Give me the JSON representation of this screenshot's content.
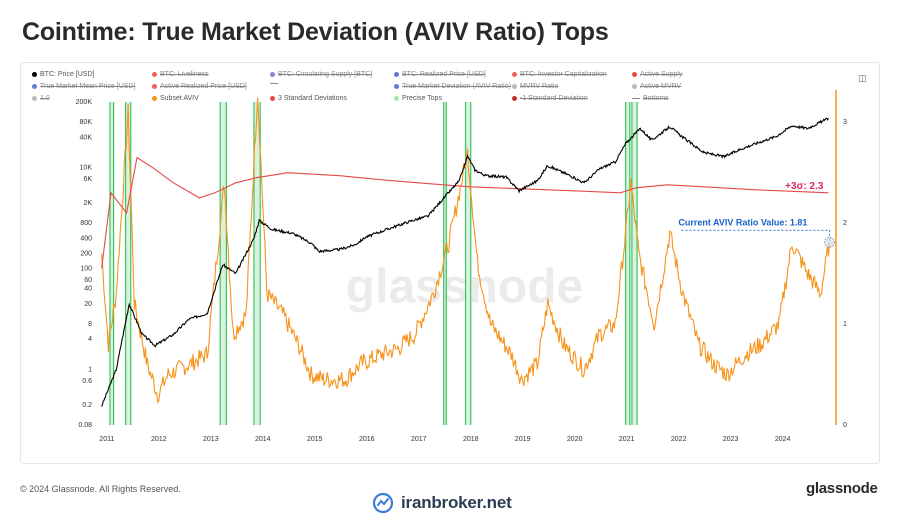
{
  "title": "Cointime: True Market Deviation (AVIV Ratio) Tops",
  "footer": {
    "copyright": "© 2024 Glassnode. All Rights Reserved.",
    "brand": "glassnode",
    "watermark": "iranbroker.net"
  },
  "legend": [
    {
      "label": "BTC: Price [USD]",
      "color": "#000000",
      "active": true,
      "shape": "dot"
    },
    {
      "label": "BTC: Liveliness",
      "color": "#f25c5c",
      "active": false,
      "shape": "dot"
    },
    {
      "label": "BTC: Circulating Supply [BTC]",
      "color": "#8a83d6",
      "active": false,
      "shape": "dot"
    },
    {
      "label": "BTC: Realized Price [USD]",
      "color": "#6b74d9",
      "active": false,
      "shape": "dot"
    },
    {
      "label": "BTC: Investor Capitalization",
      "color": "#f25c5c",
      "active": false,
      "shape": "dot"
    },
    {
      "label": "Active Supply",
      "color": "#e74848",
      "active": false,
      "shape": "dot"
    },
    {
      "label": "True Market Mean Price [USD]",
      "color": "#5d7fd6",
      "active": false,
      "shape": "dot"
    },
    {
      "label": "Active Realized Price [USD]",
      "color": "#f25c5c",
      "active": false,
      "shape": "dot"
    },
    {
      "label": "",
      "color": "#888888",
      "active": false,
      "shape": "dash"
    },
    {
      "label": "True Market Deviation (AVIV Ratio)",
      "color": "#6b74d9",
      "active": false,
      "shape": "dot"
    },
    {
      "label": "MVRV Ratio",
      "color": "#bbbbbb",
      "active": false,
      "shape": "dot"
    },
    {
      "label": "Active MVRV",
      "color": "#bbbbbb",
      "active": false,
      "shape": "dot"
    },
    {
      "label": "1.0",
      "color": "#bbbbbb",
      "active": false,
      "shape": "dot"
    },
    {
      "label": "Subset AVIV",
      "color": "#f7931a",
      "active": true,
      "shape": "dot"
    },
    {
      "label": "3 Standard Deviations",
      "color": "#e74848",
      "active": true,
      "shape": "dot"
    },
    {
      "label": "Precise Tops",
      "color": "#a8e6b0",
      "active": true,
      "shape": "dot"
    },
    {
      "label": "-1 Standard Deviation",
      "color": "#c92a2a",
      "active": false,
      "shape": "dot"
    },
    {
      "label": "Bottoms",
      "color": "#888888",
      "active": false,
      "shape": "dash"
    }
  ],
  "annotations": {
    "sigma_label": "+3σ: 2.3",
    "current_label": "Current AVIV Ratio Value: 1.81",
    "watermark_text": "glassnode"
  },
  "colors": {
    "price": "#000000",
    "aviv": "#f7931a",
    "sigma": "#e74848",
    "tops": "#3cc461",
    "annotation_blue": "#1a62c7",
    "annotation_pink": "#e0245e"
  },
  "chart_data": {
    "type": "line",
    "title": "Cointime: True Market Deviation (AVIV Ratio) Tops",
    "xlabel": "",
    "ylabel_left": "",
    "ylabel_right": "",
    "x_ticks": [
      "2011",
      "2012",
      "2013",
      "2014",
      "2015",
      "2016",
      "2017",
      "2018",
      "2019",
      "2020",
      "2021",
      "2022",
      "2023",
      "2024"
    ],
    "y_left_scale": "log",
    "y_left_ticks": [
      "0.08",
      "0.2",
      "0.6",
      "1",
      "4",
      "8",
      "20",
      "40",
      "60",
      "100",
      "200",
      "400",
      "800",
      "2K",
      "6K",
      "10K",
      "40K",
      "80K",
      "200K"
    ],
    "y_left_range": [
      0.08,
      200000
    ],
    "y_right_ticks": [
      "0",
      "1",
      "2",
      "3"
    ],
    "y_right_range": [
      0,
      3.2
    ],
    "series": [
      {
        "name": "BTC: Price [USD]",
        "axis": "left",
        "points": [
          [
            2010.92,
            0.19
          ],
          [
            2011.2,
            1
          ],
          [
            2011.45,
            20
          ],
          [
            2011.7,
            5
          ],
          [
            2011.95,
            3
          ],
          [
            2012.3,
            5
          ],
          [
            2012.6,
            10
          ],
          [
            2012.95,
            13
          ],
          [
            2013.25,
            120
          ],
          [
            2013.5,
            80
          ],
          [
            2013.85,
            400
          ],
          [
            2013.95,
            900
          ],
          [
            2014.2,
            600
          ],
          [
            2014.6,
            500
          ],
          [
            2014.95,
            320
          ],
          [
            2015.1,
            220
          ],
          [
            2015.5,
            240
          ],
          [
            2015.8,
            300
          ],
          [
            2016.0,
            420
          ],
          [
            2016.5,
            650
          ],
          [
            2016.9,
            900
          ],
          [
            2017.2,
            1100
          ],
          [
            2017.5,
            2500
          ],
          [
            2017.8,
            5500
          ],
          [
            2017.96,
            17000
          ],
          [
            2018.1,
            9000
          ],
          [
            2018.3,
            7000
          ],
          [
            2018.7,
            6500
          ],
          [
            2018.95,
            3500
          ],
          [
            2019.3,
            5500
          ],
          [
            2019.5,
            11000
          ],
          [
            2019.9,
            7200
          ],
          [
            2020.2,
            5000
          ],
          [
            2020.5,
            9500
          ],
          [
            2020.8,
            13000
          ],
          [
            2021.0,
            30000
          ],
          [
            2021.28,
            60000
          ],
          [
            2021.5,
            35000
          ],
          [
            2021.85,
            65000
          ],
          [
            2022.1,
            40000
          ],
          [
            2022.5,
            20000
          ],
          [
            2022.9,
            16500
          ],
          [
            2023.2,
            23000
          ],
          [
            2023.5,
            30000
          ],
          [
            2023.9,
            42000
          ],
          [
            2024.2,
            68000
          ],
          [
            2024.5,
            60000
          ],
          [
            2024.9,
            95000
          ]
        ]
      },
      {
        "name": "Subset AVIV",
        "axis": "right",
        "points": [
          [
            2010.92,
            1.7
          ],
          [
            2011.05,
            0.8
          ],
          [
            2011.2,
            1.3
          ],
          [
            2011.43,
            3.1
          ],
          [
            2011.55,
            1.2
          ],
          [
            2011.8,
            0.6
          ],
          [
            2012.0,
            0.3
          ],
          [
            2012.2,
            0.5
          ],
          [
            2012.6,
            0.6
          ],
          [
            2012.95,
            0.7
          ],
          [
            2013.28,
            2.4
          ],
          [
            2013.45,
            0.9
          ],
          [
            2013.7,
            1.1
          ],
          [
            2013.92,
            3.3
          ],
          [
            2014.1,
            1.3
          ],
          [
            2014.4,
            1.1
          ],
          [
            2014.7,
            0.8
          ],
          [
            2014.95,
            0.5
          ],
          [
            2015.2,
            0.45
          ],
          [
            2015.6,
            0.45
          ],
          [
            2015.9,
            0.6
          ],
          [
            2016.3,
            0.7
          ],
          [
            2016.6,
            0.75
          ],
          [
            2016.95,
            0.9
          ],
          [
            2017.3,
            1.3
          ],
          [
            2017.6,
            1.8
          ],
          [
            2017.96,
            2.7
          ],
          [
            2018.15,
            1.6
          ],
          [
            2018.4,
            1.0
          ],
          [
            2018.8,
            0.7
          ],
          [
            2019.0,
            0.45
          ],
          [
            2019.3,
            0.6
          ],
          [
            2019.5,
            1.2
          ],
          [
            2019.8,
            0.8
          ],
          [
            2020.2,
            0.55
          ],
          [
            2020.5,
            0.9
          ],
          [
            2020.8,
            1.0
          ],
          [
            2021.0,
            1.9
          ],
          [
            2021.1,
            2.4
          ],
          [
            2021.25,
            1.7
          ],
          [
            2021.55,
            1.0
          ],
          [
            2021.85,
            1.9
          ],
          [
            2022.1,
            1.3
          ],
          [
            2022.4,
            0.8
          ],
          [
            2022.7,
            0.6
          ],
          [
            2022.95,
            0.5
          ],
          [
            2023.3,
            0.7
          ],
          [
            2023.6,
            0.8
          ],
          [
            2023.95,
            1.0
          ],
          [
            2024.2,
            1.8
          ],
          [
            2024.5,
            1.5
          ],
          [
            2024.75,
            1.3
          ],
          [
            2024.92,
            1.81
          ]
        ]
      },
      {
        "name": "3 Standard Deviations",
        "axis": "right",
        "points": [
          [
            2010.92,
            1.55
          ],
          [
            2011.1,
            2.3
          ],
          [
            2011.4,
            2.1
          ],
          [
            2011.6,
            2.65
          ],
          [
            2011.9,
            2.55
          ],
          [
            2012.3,
            2.4
          ],
          [
            2012.8,
            2.25
          ],
          [
            2013.1,
            2.3
          ],
          [
            2013.5,
            2.4
          ],
          [
            2013.9,
            2.45
          ],
          [
            2014.5,
            2.5
          ],
          [
            2015.5,
            2.47
          ],
          [
            2016.5,
            2.42
          ],
          [
            2017.5,
            2.38
          ],
          [
            2018.0,
            2.36
          ],
          [
            2019.0,
            2.34
          ],
          [
            2020.0,
            2.32
          ],
          [
            2020.9,
            2.3
          ],
          [
            2021.2,
            2.35
          ],
          [
            2021.8,
            2.38
          ],
          [
            2022.5,
            2.36
          ],
          [
            2023.5,
            2.33
          ],
          [
            2024.9,
            2.3
          ]
        ]
      }
    ],
    "top_bands": [
      [
        2011.08,
        2011.15
      ],
      [
        2011.38,
        2011.48
      ],
      [
        2013.2,
        2013.32
      ],
      [
        2013.85,
        2013.97
      ],
      [
        2017.5,
        2017.55
      ],
      [
        2017.92,
        2018.02
      ],
      [
        2021.0,
        2021.08
      ],
      [
        2021.12,
        2021.22
      ]
    ]
  }
}
